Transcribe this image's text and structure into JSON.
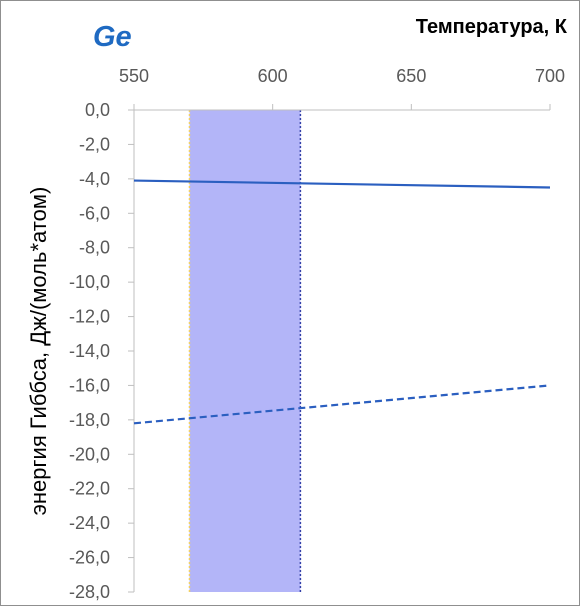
{
  "chart_data": {
    "type": "line",
    "title": "Ge",
    "xlabel": "Температура, К",
    "ylabel": "энергия Гиббса, Дж/(моль*атом)",
    "xlim": [
      550,
      700
    ],
    "ylim": [
      -28,
      0
    ],
    "x_ticks": [
      "550",
      "600",
      "650",
      "700"
    ],
    "y_ticks": [
      "0,0",
      "-2,0",
      "-4,0",
      "-6,0",
      "-8,0",
      "-10,0",
      "-12,0",
      "-14,0",
      "-16,0",
      "-18,0",
      "-20,0",
      "-22,0",
      "-24,0",
      "-26,0",
      "-28,0"
    ],
    "x_axis_position": "top",
    "grid": false,
    "series": [
      {
        "style": "solid",
        "color": "#2b5fc0",
        "x": [
          550,
          700
        ],
        "y": [
          -4.1,
          -4.5
        ]
      },
      {
        "style": "dashed",
        "color": "#2b5fc0",
        "x": [
          550,
          700
        ],
        "y": [
          -18.2,
          -16.0
        ]
      }
    ],
    "shaded_region": {
      "x": [
        570,
        610
      ],
      "color": "#b3b5f8",
      "left_edge_color": "#f2d064",
      "right_edge_color": "#3340a8"
    }
  }
}
